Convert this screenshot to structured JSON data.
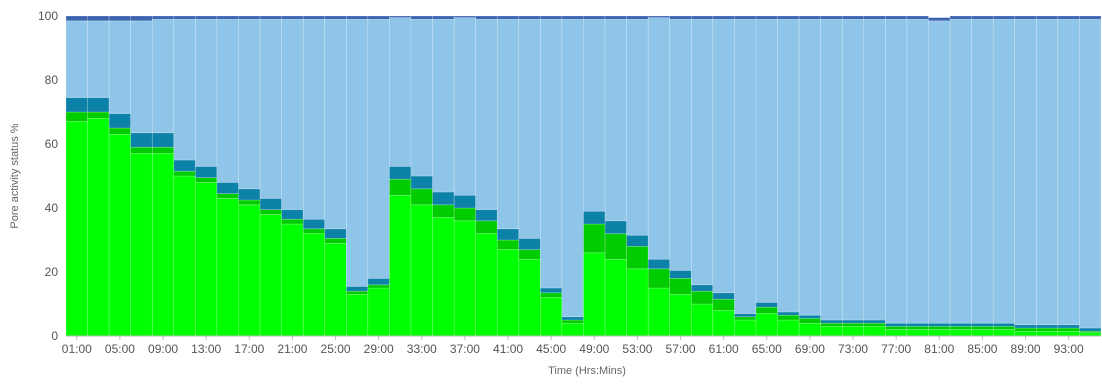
{
  "chart_data": {
    "type": "bar",
    "stacked": true,
    "xlabel": "Time (Hrs:Mins)",
    "ylabel": "Pore activity status %",
    "ylim": [
      0,
      100
    ],
    "yticks": [
      0,
      20,
      40,
      60,
      80,
      100
    ],
    "grid": false,
    "legend": "none",
    "categories": [
      "01:00",
      "03:00",
      "05:00",
      "07:00",
      "09:00",
      "11:00",
      "13:00",
      "15:00",
      "17:00",
      "19:00",
      "21:00",
      "23:00",
      "25:00",
      "27:00",
      "29:00",
      "31:00",
      "33:00",
      "35:00",
      "37:00",
      "39:00",
      "41:00",
      "43:00",
      "45:00",
      "47:00",
      "49:00",
      "51:00",
      "53:00",
      "55:00",
      "57:00",
      "59:00",
      "61:00",
      "63:00",
      "65:00",
      "67:00",
      "69:00",
      "71:00",
      "73:00",
      "75:00",
      "77:00",
      "79:00",
      "81:00",
      "83:00",
      "85:00",
      "87:00",
      "89:00",
      "91:00",
      "93:00",
      "95:00"
    ],
    "xtick_labels": [
      "01:00",
      "05:00",
      "09:00",
      "13:00",
      "17:00",
      "21:00",
      "25:00",
      "29:00",
      "33:00",
      "37:00",
      "41:00",
      "45:00",
      "49:00",
      "53:00",
      "57:00",
      "61:00",
      "65:00",
      "69:00",
      "73:00",
      "77:00",
      "81:00",
      "85:00",
      "89:00",
      "93:00"
    ],
    "series": [
      {
        "color": "#00ff00",
        "values": [
          67,
          68,
          63,
          57,
          57,
          50,
          48,
          43,
          41,
          38,
          35,
          32,
          29,
          13,
          15,
          44,
          41,
          37,
          36,
          32,
          27,
          24,
          12,
          4,
          26,
          24,
          21,
          15,
          13,
          10,
          8,
          5,
          7,
          5,
          4,
          3,
          3,
          3,
          2,
          2,
          2,
          2,
          2,
          2,
          1.5,
          1.5,
          1.5,
          1
        ]
      },
      {
        "color": "#00cc00",
        "values": [
          3,
          2,
          2,
          2,
          2,
          1.5,
          1.5,
          1.5,
          1.5,
          1.5,
          1.5,
          1.5,
          1.5,
          1,
          1,
          5,
          5,
          4,
          4,
          4,
          3,
          3,
          1.5,
          1,
          9,
          8,
          7,
          6,
          5,
          4,
          3.5,
          1,
          2,
          1.5,
          1.5,
          1,
          1,
          1,
          1,
          1,
          1,
          1,
          1,
          1,
          1,
          1,
          1,
          0.5
        ]
      },
      {
        "color": "#0d82a8",
        "values": [
          4.5,
          4.5,
          4.5,
          4.5,
          4.5,
          3.5,
          3.5,
          3.5,
          3.5,
          3.5,
          3,
          3,
          3,
          1.5,
          2,
          4,
          4,
          4,
          4,
          3.5,
          3.5,
          3.5,
          1.5,
          1,
          4,
          4,
          3.5,
          3,
          2.5,
          2,
          2,
          1,
          1.5,
          1,
          1,
          1,
          1,
          1,
          1,
          1,
          1,
          1,
          1,
          1,
          1,
          1,
          1,
          1
        ]
      },
      {
        "color": "#8fc5e8",
        "values": [
          24,
          24,
          29,
          35,
          35.5,
          44,
          46,
          51,
          53,
          56,
          59.5,
          62.5,
          65.5,
          83.5,
          81,
          46.5,
          49,
          54,
          55.5,
          59.5,
          65.5,
          68.5,
          84,
          93,
          60,
          63,
          67.5,
          75.5,
          78.5,
          83,
          85.5,
          92,
          88.5,
          91.5,
          92.5,
          94,
          94,
          94,
          95,
          95,
          94.5,
          95,
          95,
          95,
          95.5,
          95.5,
          95.5,
          96.5
        ]
      },
      {
        "color": "#3a63b0",
        "values": [
          1.5,
          1.5,
          1.5,
          1.5,
          1,
          1,
          1,
          1,
          1,
          1,
          1,
          1,
          1,
          1,
          1,
          0.5,
          1,
          1,
          0.5,
          1,
          1,
          1,
          1,
          1,
          1,
          1,
          1,
          0.5,
          1,
          1,
          1,
          1,
          1,
          1,
          1,
          1,
          1,
          1,
          1,
          1,
          1,
          1,
          1,
          1,
          1,
          1,
          1,
          1
        ]
      }
    ]
  }
}
